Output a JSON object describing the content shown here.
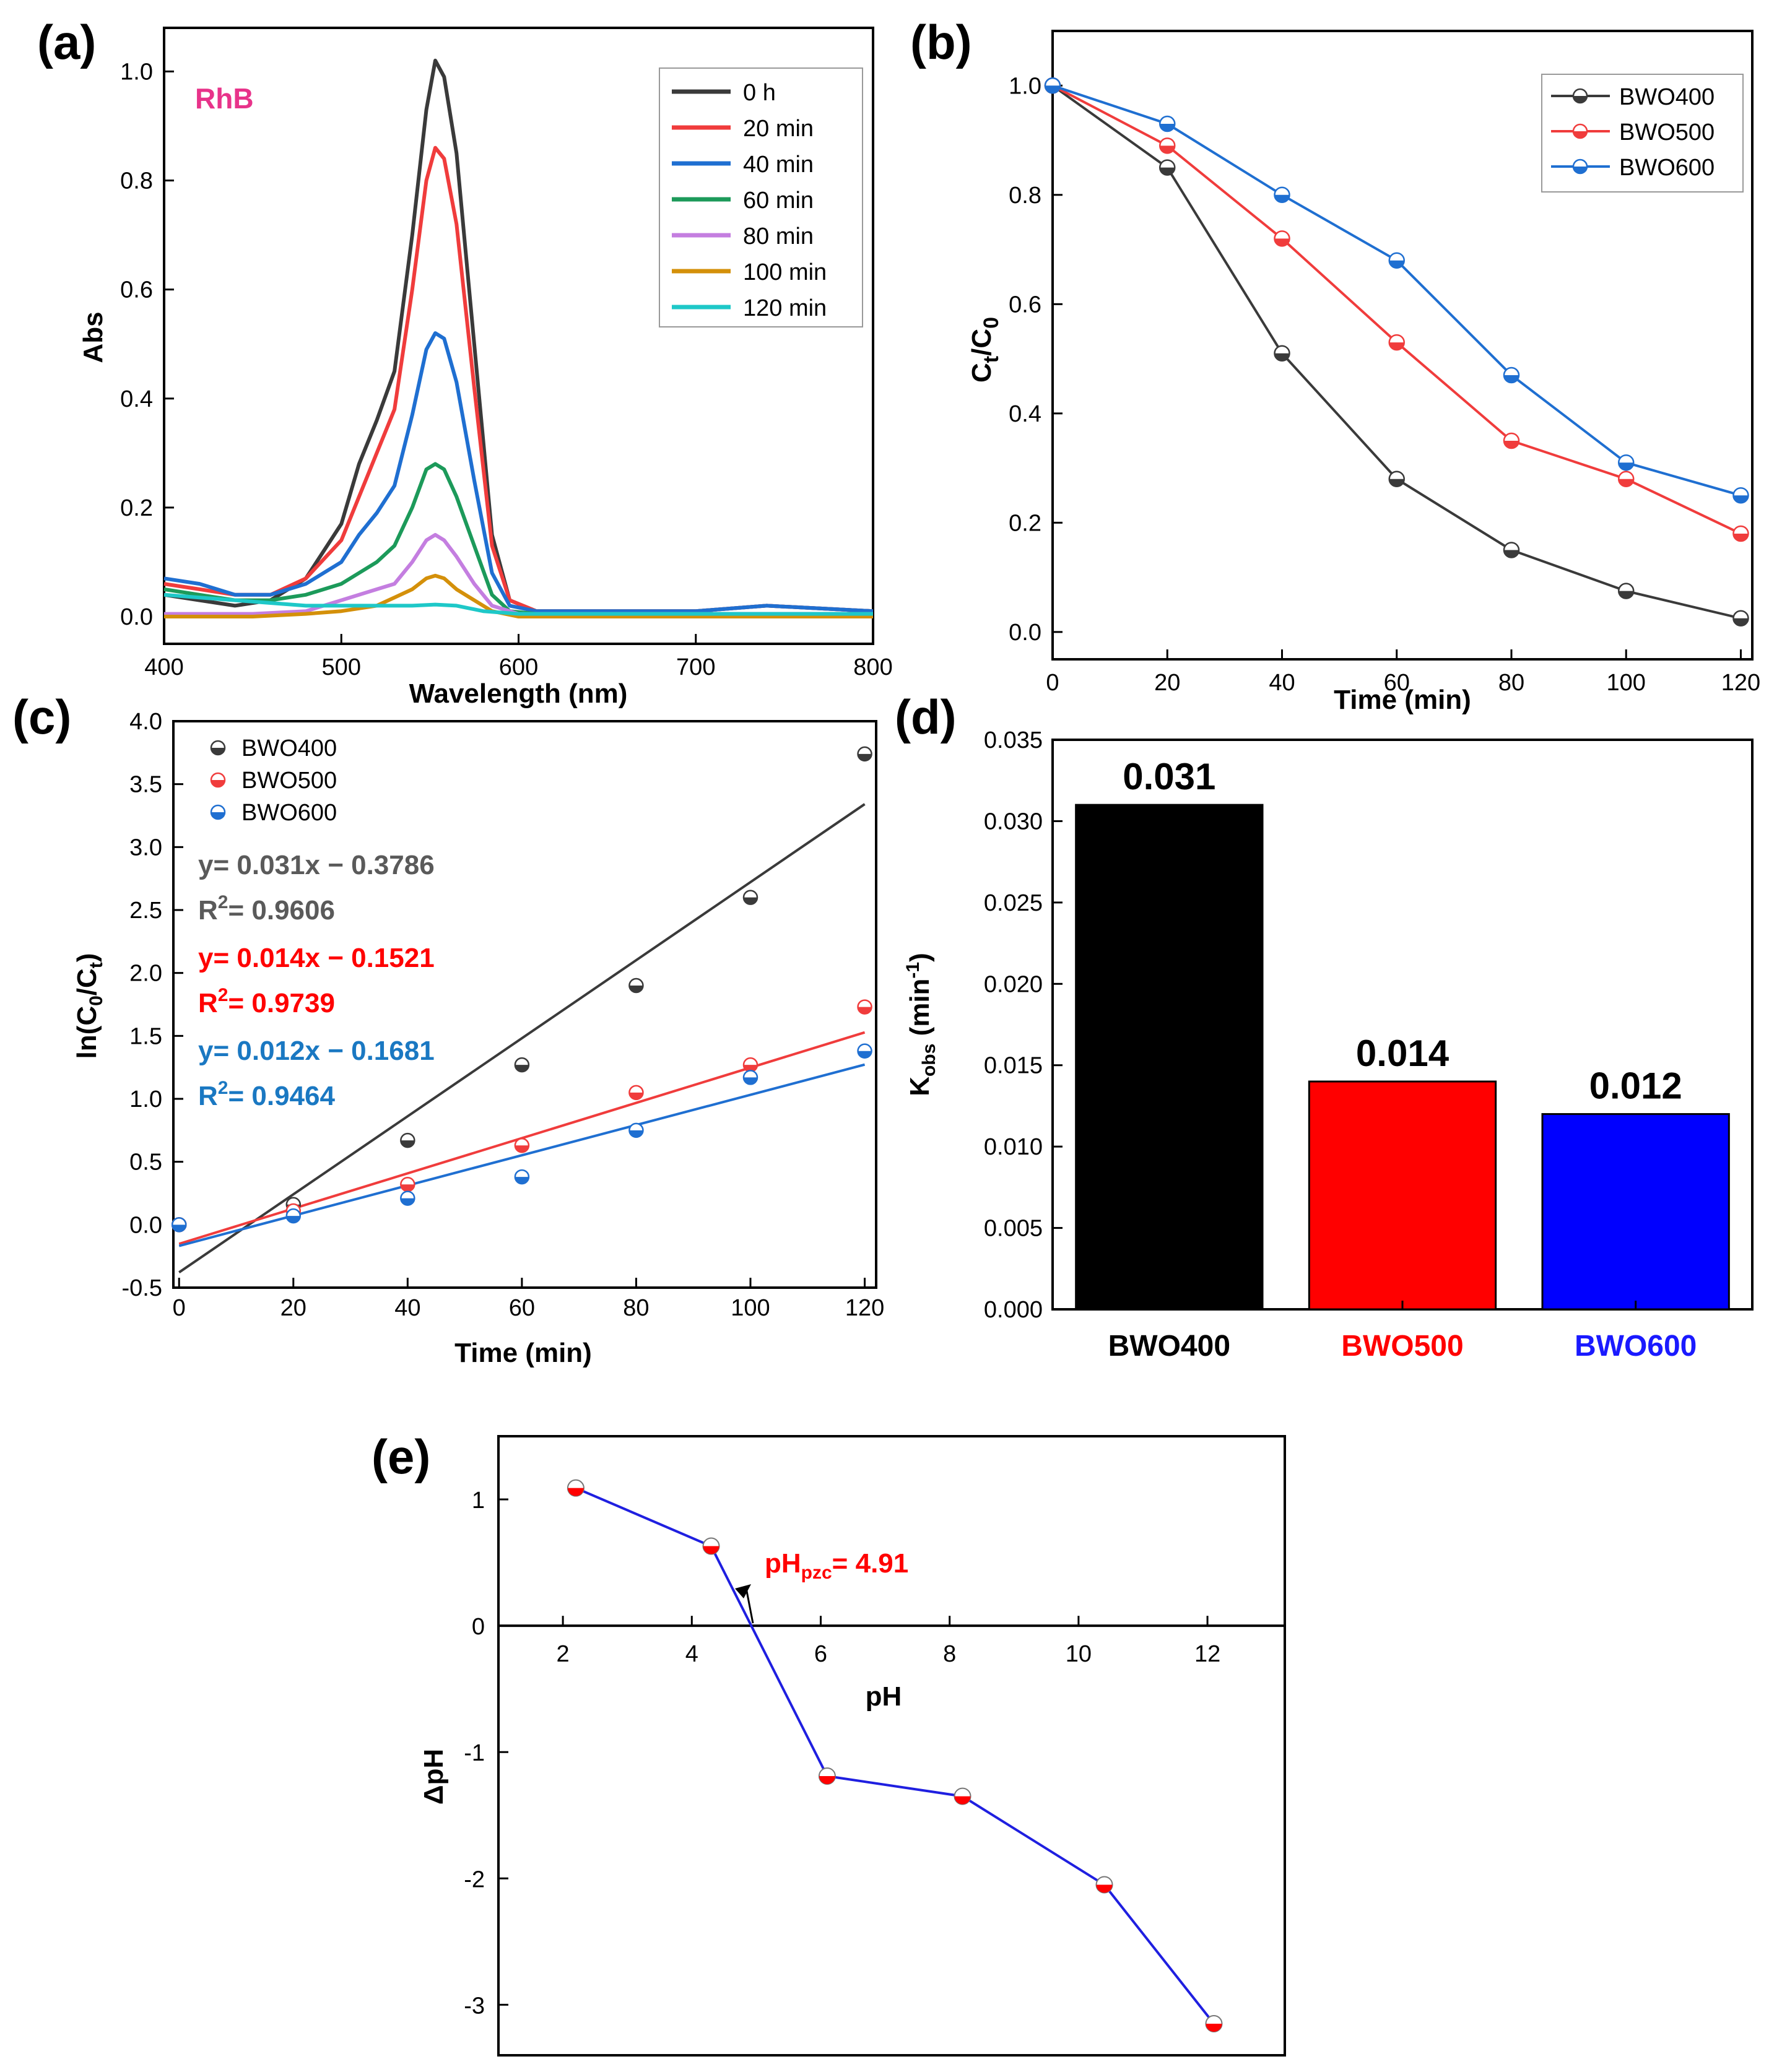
{
  "chart_data": [
    {
      "id": "a",
      "panel_label": "(a)",
      "type": "line",
      "annotation": "RhB",
      "annotation_color": "#e8338a",
      "xlabel": "Wavelength (nm)",
      "ylabel": "Abs",
      "xlim": [
        400,
        800
      ],
      "ylim": [
        -0.05,
        1.08
      ],
      "xticks": [
        400,
        500,
        600,
        700,
        800
      ],
      "yticks": [
        0.0,
        0.2,
        0.4,
        0.6,
        0.8,
        1.0
      ],
      "legend_position": "top-right",
      "series": [
        {
          "name": "0 h",
          "color": "#3a3a3a",
          "points": [
            [
              400,
              0.04
            ],
            [
              420,
              0.03
            ],
            [
              440,
              0.02
            ],
            [
              460,
              0.03
            ],
            [
              480,
              0.07
            ],
            [
              500,
              0.17
            ],
            [
              510,
              0.28
            ],
            [
              520,
              0.36
            ],
            [
              530,
              0.45
            ],
            [
              540,
              0.7
            ],
            [
              548,
              0.93
            ],
            [
              553,
              1.02
            ],
            [
              558,
              0.99
            ],
            [
              565,
              0.85
            ],
            [
              575,
              0.5
            ],
            [
              585,
              0.15
            ],
            [
              595,
              0.03
            ],
            [
              610,
              0.01
            ],
            [
              700,
              0.01
            ],
            [
              740,
              0.02
            ],
            [
              800,
              0.01
            ]
          ]
        },
        {
          "name": "20 min",
          "color": "#f03c3c",
          "points": [
            [
              400,
              0.06
            ],
            [
              420,
              0.05
            ],
            [
              440,
              0.04
            ],
            [
              460,
              0.04
            ],
            [
              480,
              0.07
            ],
            [
              500,
              0.14
            ],
            [
              510,
              0.22
            ],
            [
              520,
              0.3
            ],
            [
              530,
              0.38
            ],
            [
              540,
              0.6
            ],
            [
              548,
              0.8
            ],
            [
              553,
              0.86
            ],
            [
              558,
              0.84
            ],
            [
              565,
              0.72
            ],
            [
              575,
              0.42
            ],
            [
              585,
              0.13
            ],
            [
              595,
              0.03
            ],
            [
              610,
              0.01
            ],
            [
              700,
              0.01
            ],
            [
              740,
              0.02
            ],
            [
              800,
              0.01
            ]
          ]
        },
        {
          "name": "40 min",
          "color": "#1f6fd1",
          "points": [
            [
              400,
              0.07
            ],
            [
              420,
              0.06
            ],
            [
              440,
              0.04
            ],
            [
              460,
              0.04
            ],
            [
              480,
              0.06
            ],
            [
              500,
              0.1
            ],
            [
              510,
              0.15
            ],
            [
              520,
              0.19
            ],
            [
              530,
              0.24
            ],
            [
              540,
              0.37
            ],
            [
              548,
              0.49
            ],
            [
              553,
              0.52
            ],
            [
              558,
              0.51
            ],
            [
              565,
              0.43
            ],
            [
              575,
              0.25
            ],
            [
              585,
              0.08
            ],
            [
              595,
              0.02
            ],
            [
              610,
              0.01
            ],
            [
              700,
              0.01
            ],
            [
              740,
              0.02
            ],
            [
              800,
              0.01
            ]
          ]
        },
        {
          "name": "60 min",
          "color": "#1c9a5a",
          "points": [
            [
              400,
              0.05
            ],
            [
              420,
              0.04
            ],
            [
              440,
              0.03
            ],
            [
              460,
              0.03
            ],
            [
              480,
              0.04
            ],
            [
              500,
              0.06
            ],
            [
              510,
              0.08
            ],
            [
              520,
              0.1
            ],
            [
              530,
              0.13
            ],
            [
              540,
              0.2
            ],
            [
              548,
              0.27
            ],
            [
              553,
              0.28
            ],
            [
              558,
              0.27
            ],
            [
              565,
              0.22
            ],
            [
              575,
              0.13
            ],
            [
              585,
              0.04
            ],
            [
              595,
              0.01
            ],
            [
              610,
              0.005
            ],
            [
              700,
              0.005
            ],
            [
              800,
              0.005
            ]
          ]
        },
        {
          "name": "80 min",
          "color": "#c47ee0",
          "points": [
            [
              400,
              0.005
            ],
            [
              450,
              0.005
            ],
            [
              480,
              0.01
            ],
            [
              500,
              0.03
            ],
            [
              520,
              0.05
            ],
            [
              530,
              0.06
            ],
            [
              540,
              0.1
            ],
            [
              548,
              0.14
            ],
            [
              553,
              0.15
            ],
            [
              558,
              0.14
            ],
            [
              565,
              0.11
            ],
            [
              575,
              0.06
            ],
            [
              585,
              0.02
            ],
            [
              600,
              0.005
            ],
            [
              800,
              0.005
            ]
          ]
        },
        {
          "name": "100 min",
          "color": "#d4900a",
          "points": [
            [
              400,
              0.0
            ],
            [
              450,
              0.0
            ],
            [
              480,
              0.005
            ],
            [
              500,
              0.01
            ],
            [
              520,
              0.02
            ],
            [
              540,
              0.05
            ],
            [
              548,
              0.07
            ],
            [
              553,
              0.075
            ],
            [
              558,
              0.07
            ],
            [
              565,
              0.05
            ],
            [
              575,
              0.03
            ],
            [
              585,
              0.01
            ],
            [
              600,
              0.0
            ],
            [
              800,
              0.0
            ]
          ]
        },
        {
          "name": "120 min",
          "color": "#1ec8c8",
          "points": [
            [
              400,
              0.04
            ],
            [
              420,
              0.035
            ],
            [
              440,
              0.03
            ],
            [
              460,
              0.025
            ],
            [
              480,
              0.02
            ],
            [
              500,
              0.02
            ],
            [
              520,
              0.02
            ],
            [
              540,
              0.02
            ],
            [
              553,
              0.022
            ],
            [
              565,
              0.02
            ],
            [
              580,
              0.01
            ],
            [
              600,
              0.005
            ],
            [
              800,
              0.005
            ]
          ]
        }
      ]
    },
    {
      "id": "b",
      "panel_label": "(b)",
      "type": "line",
      "xlabel": "Time (min)",
      "ylabel_main": "C",
      "ylabel_sub1": "t",
      "ylabel_slash": "/C",
      "ylabel_sub2": "0",
      "xlim": [
        0,
        122
      ],
      "ylim": [
        -0.05,
        1.1
      ],
      "xticks": [
        0,
        20,
        40,
        60,
        80,
        100,
        120
      ],
      "yticks": [
        0.0,
        0.2,
        0.4,
        0.6,
        0.8,
        1.0
      ],
      "legend_position": "top-right",
      "series": [
        {
          "name": "BWO400",
          "color": "#3a3a3a",
          "x": [
            0,
            20,
            40,
            60,
            80,
            100,
            120
          ],
          "values": [
            1.0,
            0.85,
            0.51,
            0.28,
            0.15,
            0.075,
            0.025
          ]
        },
        {
          "name": "BWO500",
          "color": "#f03c3c",
          "x": [
            0,
            20,
            40,
            60,
            80,
            100,
            120
          ],
          "values": [
            1.0,
            0.89,
            0.72,
            0.53,
            0.35,
            0.28,
            0.18
          ]
        },
        {
          "name": "BWO600",
          "color": "#1f6fd1",
          "x": [
            0,
            20,
            40,
            60,
            80,
            100,
            120
          ],
          "values": [
            1.0,
            0.93,
            0.8,
            0.68,
            0.47,
            0.31,
            0.25
          ]
        }
      ]
    },
    {
      "id": "c",
      "panel_label": "(c)",
      "type": "scatter",
      "xlabel": "Time (min)",
      "ylabel_main": "ln(C",
      "ylabel_sub1": "0",
      "ylabel_slash": "/C",
      "ylabel_sub2": "t",
      "ylabel_close": ")",
      "xlim": [
        -1,
        122
      ],
      "ylim": [
        -0.5,
        4.0
      ],
      "xticks": [
        0,
        20,
        40,
        60,
        80,
        100,
        120
      ],
      "yticks": [
        -0.5,
        0.0,
        0.5,
        1.0,
        1.5,
        2.0,
        2.5,
        3.0,
        3.5,
        4.0
      ],
      "legend_position": "top-left",
      "series": [
        {
          "name": "BWO400",
          "color": "#3a3a3a",
          "x": [
            0,
            20,
            40,
            60,
            80,
            100,
            120
          ],
          "values": [
            0.0,
            0.16,
            0.67,
            1.27,
            1.9,
            2.6,
            3.74
          ],
          "fit_slope": 0.031,
          "fit_intercept": -0.3786,
          "equation": "y= 0.031x − 0.3786",
          "r2_label": "R",
          "r2_sup": "2",
          "r2_value": "= 0.9606",
          "eq_color": "#5a5a5a"
        },
        {
          "name": "BWO500",
          "color": "#f03c3c",
          "x": [
            0,
            20,
            40,
            60,
            80,
            100,
            120
          ],
          "values": [
            0.0,
            0.11,
            0.32,
            0.63,
            1.05,
            1.27,
            1.73
          ],
          "fit_slope": 0.014,
          "fit_intercept": -0.1521,
          "equation": "y= 0.014x − 0.1521",
          "r2_label": "R",
          "r2_sup": "2",
          "r2_value": "= 0.9739",
          "eq_color": "#ff0000"
        },
        {
          "name": "BWO600",
          "color": "#1f6fd1",
          "x": [
            0,
            20,
            40,
            60,
            80,
            100,
            120
          ],
          "values": [
            0.0,
            0.07,
            0.21,
            0.38,
            0.75,
            1.17,
            1.38
          ],
          "fit_slope": 0.012,
          "fit_intercept": -0.1681,
          "equation": "y= 0.012x − 0.1681",
          "r2_label": "R",
          "r2_sup": "2",
          "r2_value": "= 0.9464",
          "eq_color": "#1a78c2"
        }
      ]
    },
    {
      "id": "d",
      "panel_label": "(d)",
      "type": "bar",
      "categories": [
        "BWO400",
        "BWO500",
        "BWO600"
      ],
      "values": [
        0.031,
        0.014,
        0.012
      ],
      "data_labels": [
        "0.031",
        "0.014",
        "0.012"
      ],
      "bar_colors": [
        "#000000",
        "#ff0000",
        "#0000ff"
      ],
      "category_colors": [
        "#000000",
        "#ff0000",
        "#1a1aff"
      ],
      "ylabel_main": "K",
      "ylabel_sub": "obs",
      "ylabel_unit": " (min",
      "ylabel_sup": "-1",
      "ylabel_close": ")",
      "ylim": [
        0,
        0.035
      ],
      "yticks": [
        "0.000",
        "0.005",
        "0.010",
        "0.015",
        "0.020",
        "0.025",
        "0.030",
        "0.035"
      ],
      "ytick_values": [
        0.0,
        0.005,
        0.01,
        0.015,
        0.02,
        0.025,
        0.03,
        0.035
      ]
    },
    {
      "id": "e",
      "panel_label": "(e)",
      "type": "line",
      "xlabel": "pH",
      "ylabel": "ΔpH",
      "xlim": [
        1.0,
        13.2
      ],
      "ylim": [
        -3.4,
        1.5
      ],
      "xticks": [
        2,
        4,
        6,
        8,
        10,
        12
      ],
      "yticks": [
        1,
        0,
        -1,
        -2,
        -3
      ],
      "line_color": "#1f1fe0",
      "marker_color": "#ff0000",
      "series": [
        {
          "name": "ΔpH",
          "x": [
            2.2,
            4.3,
            6.1,
            8.2,
            10.4,
            12.1
          ],
          "values": [
            1.09,
            0.63,
            -1.19,
            -1.35,
            -2.05,
            -3.15
          ]
        }
      ],
      "annotation_main": "pH",
      "annotation_sub": "pzc",
      "annotation_value": "= 4.91",
      "annotation_color": "#ff0000",
      "pzc": 4.91
    }
  ]
}
